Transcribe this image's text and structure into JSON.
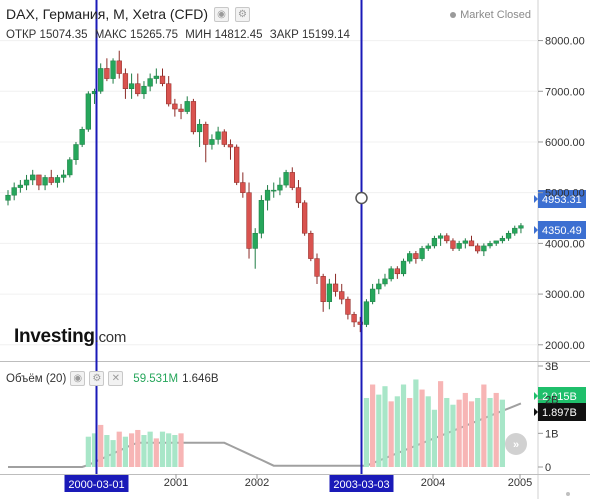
{
  "header": {
    "title": "DAX, Германия, M, Xetra (CFD)",
    "ohlc": [
      {
        "label": "ОТКР",
        "value": "15074.35"
      },
      {
        "label": "МАКС",
        "value": "15265.75"
      },
      {
        "label": "МИН",
        "value": "14812.45"
      },
      {
        "label": "ЗАКР",
        "value": "15199.14"
      }
    ],
    "market_status": "Market Closed"
  },
  "logo": {
    "main": "Investing",
    "suffix": ".com"
  },
  "volume_header": {
    "label": "Объём (20)",
    "value1": "59.531M",
    "value2": "1.646B"
  },
  "price_tags": {
    "crosshair": "4953.31",
    "last": "4350.49"
  },
  "volume_tags": {
    "volume": "2.015B",
    "ma": "1.897B"
  },
  "date_tags": {
    "left": "2000-03-01",
    "right": "2003-03-03"
  },
  "colors": {
    "up": "#26a65b",
    "down": "#d9534f",
    "up_vol": "#a8e6c8",
    "down_vol": "#f7b5b5",
    "marker": "#1a1ab8",
    "tag_blue": "#3c6fd1",
    "tag_green": "#1fbf6b",
    "tag_black": "#111111",
    "ma": "#a0a0a0"
  },
  "chart_data": [
    {
      "type": "candlestick",
      "yaxis_ticks": [
        "8000.00",
        "7000.00",
        "6000.00",
        "5000.00",
        "4000.00",
        "3000.00",
        "2000.00"
      ],
      "ylim": [
        1700,
        8800
      ],
      "xaxis_ticks": [
        "2000-03-01",
        "2001",
        "2002",
        "2003-03-03",
        "2004",
        "2005"
      ],
      "candles": [
        [
          4850,
          5050,
          4750,
          4950
        ],
        [
          4950,
          5200,
          4850,
          5100
        ],
        [
          5100,
          5250,
          5000,
          5150
        ],
        [
          5150,
          5350,
          5050,
          5250
        ],
        [
          5250,
          5450,
          5150,
          5350
        ],
        [
          5350,
          5350,
          5050,
          5150
        ],
        [
          5150,
          5350,
          5050,
          5300
        ],
        [
          5300,
          5450,
          5150,
          5200
        ],
        [
          5200,
          5350,
          5100,
          5300
        ],
        [
          5300,
          5450,
          5200,
          5350
        ],
        [
          5350,
          5700,
          5300,
          5650
        ],
        [
          5650,
          6000,
          5550,
          5950
        ],
        [
          5950,
          6300,
          5900,
          6250
        ],
        [
          6250,
          7000,
          6200,
          6950
        ],
        [
          6950,
          7050,
          6750,
          7000
        ],
        [
          7000,
          7550,
          6950,
          7450
        ],
        [
          7450,
          7650,
          7200,
          7250
        ],
        [
          7250,
          7650,
          7150,
          7600
        ],
        [
          7600,
          7800,
          7250,
          7350
        ],
        [
          7350,
          7450,
          6850,
          7050
        ],
        [
          7050,
          7350,
          6850,
          7150
        ],
        [
          7150,
          7350,
          6900,
          6950
        ],
        [
          6950,
          7200,
          6850,
          7100
        ],
        [
          7100,
          7350,
          7000,
          7250
        ],
        [
          7250,
          7450,
          7150,
          7300
        ],
        [
          7300,
          7450,
          7100,
          7150
        ],
        [
          7150,
          7300,
          6700,
          6750
        ],
        [
          6750,
          6850,
          6500,
          6650
        ],
        [
          6650,
          6750,
          6450,
          6600
        ],
        [
          6600,
          6900,
          6550,
          6800
        ],
        [
          6800,
          6850,
          6150,
          6200
        ],
        [
          6200,
          6450,
          5900,
          6350
        ],
        [
          6350,
          6400,
          5600,
          5950
        ],
        [
          5950,
          6150,
          5850,
          6050
        ],
        [
          6050,
          6300,
          5950,
          6200
        ],
        [
          6200,
          6250,
          5900,
          5950
        ],
        [
          5950,
          6050,
          5650,
          5900
        ],
        [
          5900,
          5950,
          5150,
          5200
        ],
        [
          5200,
          5400,
          4900,
          5000
        ],
        [
          5000,
          5200,
          3700,
          3900
        ],
        [
          3900,
          4300,
          3500,
          4200
        ],
        [
          4200,
          4950,
          4100,
          4850
        ],
        [
          4850,
          5150,
          4650,
          5050
        ],
        [
          5050,
          5200,
          4900,
          5050
        ],
        [
          5050,
          5300,
          4950,
          5150
        ],
        [
          5150,
          5450,
          5100,
          5400
        ],
        [
          5400,
          5500,
          5050,
          5100
        ],
        [
          5100,
          5250,
          4700,
          4800
        ],
        [
          4800,
          4850,
          4150,
          4200
        ],
        [
          4200,
          4250,
          3650,
          3700
        ],
        [
          3700,
          3800,
          3200,
          3350
        ],
        [
          3350,
          3400,
          2650,
          2850
        ],
        [
          2850,
          3300,
          2700,
          3200
        ],
        [
          3200,
          3400,
          2950,
          3050
        ],
        [
          3050,
          3200,
          2800,
          2900
        ],
        [
          2900,
          2950,
          2500,
          2600
        ],
        [
          2600,
          2650,
          2350,
          2450
        ],
        [
          2450,
          2550,
          2250,
          2400
        ],
        [
          2400,
          2900,
          2350,
          2850
        ],
        [
          2850,
          3200,
          2800,
          3100
        ],
        [
          3100,
          3300,
          3000,
          3200
        ],
        [
          3200,
          3400,
          3150,
          3300
        ],
        [
          3300,
          3550,
          3250,
          3500
        ],
        [
          3500,
          3550,
          3300,
          3400
        ],
        [
          3400,
          3700,
          3350,
          3650
        ],
        [
          3650,
          3850,
          3600,
          3800
        ],
        [
          3800,
          3850,
          3600,
          3700
        ],
        [
          3700,
          3950,
          3650,
          3900
        ],
        [
          3900,
          4000,
          3850,
          3950
        ],
        [
          3950,
          4150,
          3900,
          4100
        ],
        [
          4100,
          4200,
          3950,
          4150
        ],
        [
          4150,
          4200,
          4000,
          4050
        ],
        [
          4050,
          4100,
          3850,
          3900
        ],
        [
          3900,
          4050,
          3850,
          4000
        ],
        [
          4000,
          4100,
          3900,
          4050
        ],
        [
          4050,
          4150,
          3950,
          3950
        ],
        [
          3950,
          4000,
          3800,
          3850
        ],
        [
          3850,
          4000,
          3750,
          3950
        ],
        [
          3950,
          4050,
          3900,
          4000
        ],
        [
          4000,
          4050,
          3950,
          4050
        ],
        [
          4050,
          4150,
          4000,
          4100
        ],
        [
          4100,
          4250,
          4050,
          4200
        ],
        [
          4200,
          4350,
          4150,
          4300
        ],
        [
          4300,
          4400,
          4200,
          4350
        ]
      ]
    },
    {
      "type": "bar",
      "name": "Объём (20)",
      "yaxis_ticks": [
        "3B",
        "2B",
        "1B",
        "0"
      ],
      "ylim": [
        0,
        3
      ],
      "segments": [
        {
          "start_index": 13,
          "values": [
            0.9,
            1.0,
            1.25,
            0.95,
            0.8,
            1.05,
            0.9,
            1.0,
            1.1,
            0.95,
            1.05,
            0.85,
            1.05,
            1.0,
            0.95,
            1.0
          ],
          "up": [
            1,
            1,
            0,
            1,
            1,
            0,
            1,
            0,
            0,
            1,
            1,
            0,
            1,
            1,
            1,
            0
          ]
        },
        {
          "start_index": 58,
          "values": [
            2.05,
            2.45,
            2.15,
            2.4,
            1.95,
            2.1,
            2.45,
            2.05,
            2.6,
            2.3,
            2.1,
            1.7,
            2.55,
            2.05,
            1.85,
            2.0,
            2.2,
            1.95,
            2.05,
            2.45,
            2.05,
            2.2,
            2.0
          ],
          "up": [
            1,
            0,
            1,
            1,
            0,
            1,
            1,
            0,
            1,
            0,
            1,
            1,
            0,
            1,
            1,
            0,
            0,
            0,
            1,
            0,
            1,
            0,
            1
          ]
        }
      ],
      "ma_label": "1.897B"
    }
  ]
}
